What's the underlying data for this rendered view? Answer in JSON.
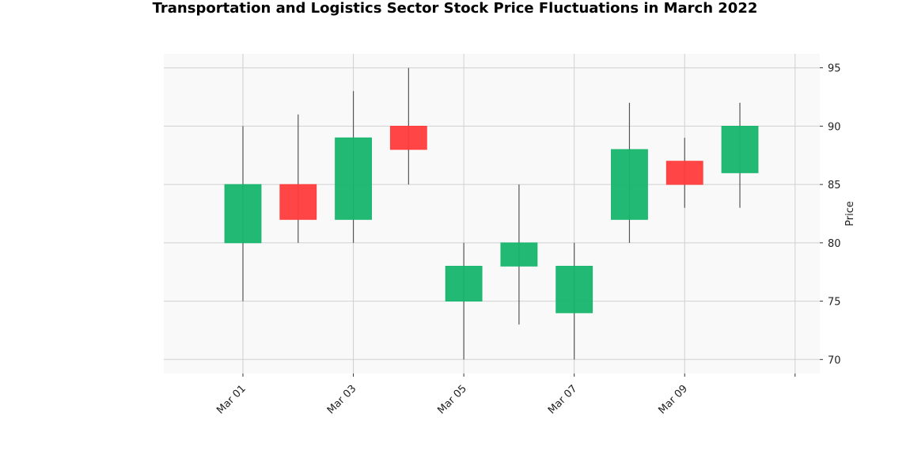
{
  "chart_data": {
    "type": "candlestick",
    "title": "Transportation and Logistics Sector Stock Price Fluctuations in March 2022",
    "xlabel": "",
    "ylabel": "Price",
    "ylim": [
      68.8,
      96.2
    ],
    "yticks": [
      70,
      75,
      80,
      85,
      90,
      95
    ],
    "xticks": [
      "Mar 01",
      "Mar 03",
      "Mar 05",
      "Mar 07",
      "Mar 09"
    ],
    "grid": true,
    "y_axis_side": "right",
    "colors": {
      "up": "#15b56c",
      "down": "#ff3b3b",
      "wick": "#555555",
      "background": "#f9f9f9",
      "grid": "#d0d0d0"
    },
    "candles": [
      {
        "date": "2022-03-01",
        "open": 80,
        "high": 90,
        "low": 75,
        "close": 85
      },
      {
        "date": "2022-03-02",
        "open": 85,
        "high": 91,
        "low": 80,
        "close": 82
      },
      {
        "date": "2022-03-03",
        "open": 82,
        "high": 93,
        "low": 80,
        "close": 89
      },
      {
        "date": "2022-03-04",
        "open": 90,
        "high": 95,
        "low": 85,
        "close": 88
      },
      {
        "date": "2022-03-05",
        "open": 75,
        "high": 80,
        "low": 70,
        "close": 78
      },
      {
        "date": "2022-03-06",
        "open": 78,
        "high": 85,
        "low": 73,
        "close": 80
      },
      {
        "date": "2022-03-07",
        "open": 74,
        "high": 80,
        "low": 70,
        "close": 78
      },
      {
        "date": "2022-03-08",
        "open": 82,
        "high": 92,
        "low": 80,
        "close": 88
      },
      {
        "date": "2022-03-09",
        "open": 87,
        "high": 89,
        "low": 83,
        "close": 85
      },
      {
        "date": "2022-03-10",
        "open": 86,
        "high": 92,
        "low": 83,
        "close": 90
      }
    ]
  }
}
